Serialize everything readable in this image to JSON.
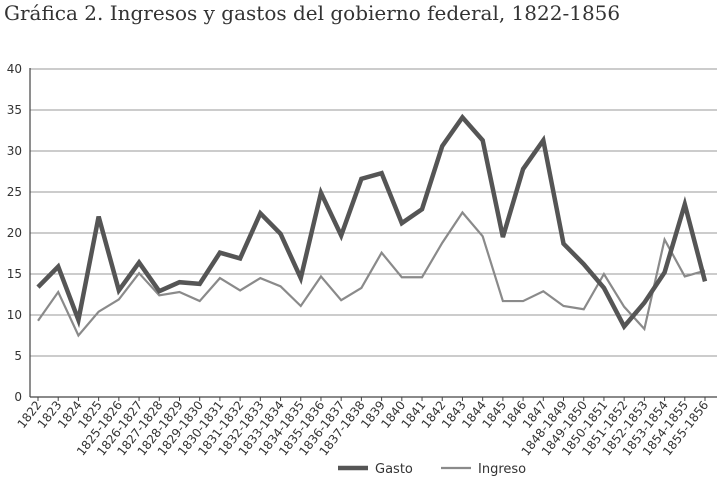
{
  "chart_data": {
    "type": "line",
    "title": "Gráfica 2. Ingresos y gastos del gobierno federal, 1822-1856",
    "xlabel": "",
    "ylabel": "",
    "ylim": [
      0,
      40
    ],
    "yticks": [
      0,
      5,
      10,
      15,
      20,
      25,
      30,
      35,
      40
    ],
    "grid": "horizontal",
    "legend_position": "bottom-center",
    "categories": [
      "1822",
      "1823",
      "1824",
      "1825",
      "1825-1826",
      "1826-1827",
      "1827-1828",
      "1828-1829",
      "1829-1830",
      "1830-1831",
      "1831-1832",
      "1832-1833",
      "1833-1834",
      "1834-1835",
      "1835-1836",
      "1836-1837",
      "1837-1838",
      "1839",
      "1840",
      "1841",
      "1842",
      "1843",
      "1844",
      "1845",
      "1846",
      "1847",
      "1848-1849",
      "1849-1850",
      "1850-1851",
      "1851-1852",
      "1852-1853",
      "1853-1854",
      "1854-1855",
      "1855-1856"
    ],
    "series": [
      {
        "name": "Gasto",
        "color": "#555555",
        "width": 4.5,
        "values": [
          13.4,
          15.9,
          9.4,
          22.0,
          13.0,
          16.4,
          12.9,
          14.0,
          13.8,
          17.6,
          16.9,
          22.4,
          19.9,
          14.5,
          24.9,
          19.7,
          26.6,
          27.3,
          21.2,
          22.9,
          30.6,
          34.1,
          31.3,
          19.5,
          27.8,
          31.3,
          18.7,
          16.2,
          13.3,
          8.6,
          11.5,
          15.2,
          23.5,
          14.1
        ]
      },
      {
        "name": "Ingreso",
        "color": "#8a8a8a",
        "width": 2.2,
        "values": [
          9.3,
          12.8,
          7.5,
          10.4,
          11.9,
          15.1,
          12.4,
          12.8,
          11.7,
          14.5,
          13.0,
          14.5,
          13.5,
          11.1,
          14.7,
          11.8,
          13.3,
          17.6,
          14.6,
          14.6,
          18.8,
          22.5,
          19.6,
          11.7,
          11.7,
          12.9,
          11.1,
          10.7,
          15.0,
          11.0,
          8.3,
          19.2,
          14.7,
          15.4
        ]
      }
    ]
  }
}
